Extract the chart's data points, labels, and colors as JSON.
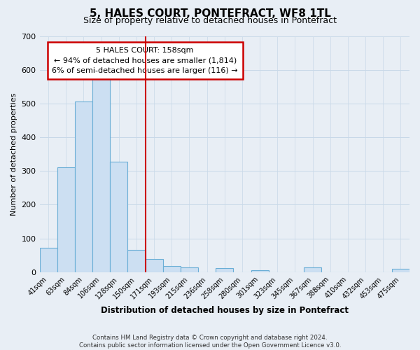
{
  "title": "5, HALES COURT, PONTEFRACT, WF8 1TL",
  "subtitle": "Size of property relative to detached houses in Pontefract",
  "bar_labels": [
    "41sqm",
    "63sqm",
    "84sqm",
    "106sqm",
    "128sqm",
    "150sqm",
    "171sqm",
    "193sqm",
    "215sqm",
    "236sqm",
    "258sqm",
    "280sqm",
    "301sqm",
    "323sqm",
    "345sqm",
    "367sqm",
    "388sqm",
    "410sqm",
    "432sqm",
    "453sqm",
    "475sqm"
  ],
  "bar_heights": [
    72,
    311,
    505,
    573,
    327,
    67,
    40,
    18,
    14,
    0,
    12,
    0,
    6,
    0,
    0,
    14,
    0,
    0,
    0,
    0,
    10
  ],
  "bar_color": "#ccdff2",
  "bar_edge_color": "#6aaed6",
  "ylabel": "Number of detached properties",
  "xlabel": "Distribution of detached houses by size in Pontefract",
  "ylim": [
    0,
    700
  ],
  "yticks": [
    0,
    100,
    200,
    300,
    400,
    500,
    600,
    700
  ],
  "vline_x_index": 5.5,
  "vline_color": "#cc0000",
  "annotation_title": "5 HALES COURT: 158sqm",
  "annotation_line1": "← 94% of detached houses are smaller (1,814)",
  "annotation_line2": "6% of semi-detached houses are larger (116) →",
  "annotation_box_facecolor": "#ffffff",
  "annotation_box_edgecolor": "#cc0000",
  "footer1": "Contains HM Land Registry data © Crown copyright and database right 2024.",
  "footer2": "Contains public sector information licensed under the Open Government Licence v3.0.",
  "grid_color": "#c8d8e8",
  "background_color": "#e8eef5"
}
